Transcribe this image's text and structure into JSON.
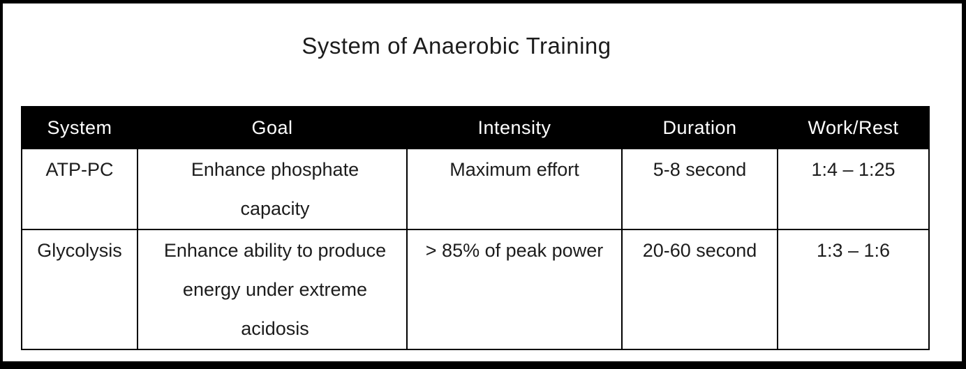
{
  "page": {
    "title": "System of Anaerobic Training"
  },
  "colors": {
    "header_bg": "#000000",
    "header_text": "#ffffff",
    "body_text": "#1c1c1c",
    "border": "#000000",
    "frame": "#000000",
    "background": "#ffffff"
  },
  "table": {
    "columns": [
      "System",
      "Goal",
      "Intensity",
      "Duration",
      "Work/Rest"
    ],
    "rows": [
      {
        "system": "ATP-PC",
        "goal": "Enhance phosphate\ncapacity",
        "intensity": "Maximum effort",
        "duration": "5-8 second",
        "work_rest": "1:4 – 1:25"
      },
      {
        "system": "Glycolysis",
        "goal": "Enhance ability to produce\nenergy under extreme\nacidosis",
        "intensity": "> 85% of peak power",
        "duration": "20-60 second",
        "work_rest": "1:3 – 1:6"
      }
    ]
  }
}
